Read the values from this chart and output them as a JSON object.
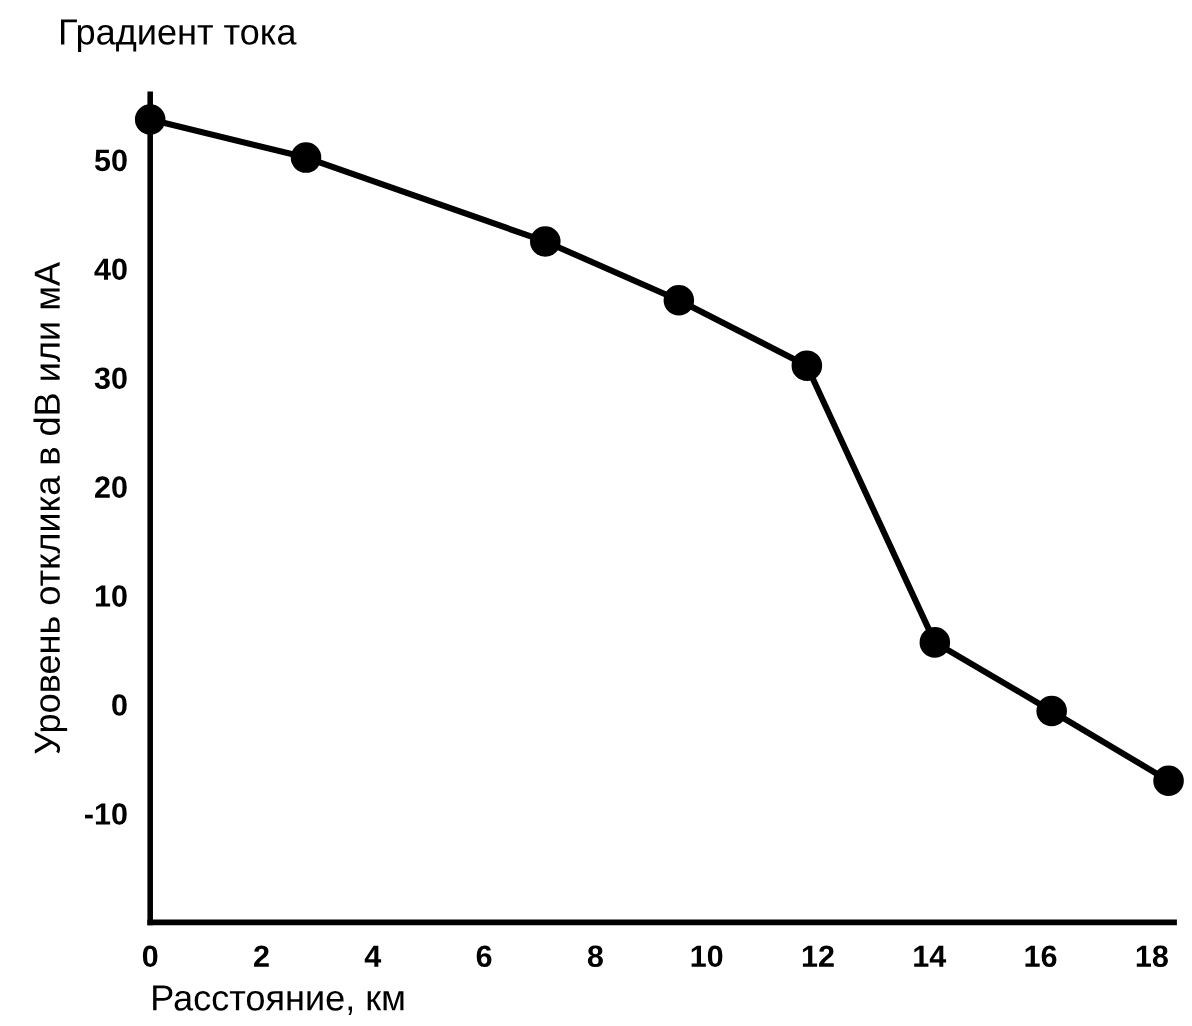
{
  "chart_data": {
    "type": "line",
    "title": "Градиент тока",
    "xlabel": "Расстояние, км",
    "ylabel": "Уровень отклика в dB или мА",
    "x": [
      0,
      2.8,
      7.1,
      9.5,
      11.8,
      14.1,
      16.2,
      18.3
    ],
    "series": [
      {
        "color": "#000000",
        "values": [
          53.7,
          50.2,
          42.5,
          37.1,
          31.1,
          5.7,
          -0.6,
          -7.0
        ]
      }
    ],
    "xlim": [
      0,
      18.4
    ],
    "xticks": [
      0,
      2,
      4,
      6,
      8,
      10,
      12,
      14,
      16,
      18
    ],
    "ylim": [
      -20,
      56
    ],
    "yticks": [
      -10,
      0,
      10,
      20,
      30,
      40,
      50
    ],
    "marker": "circle",
    "line_style": "solid",
    "grid": false,
    "legend": false
  }
}
